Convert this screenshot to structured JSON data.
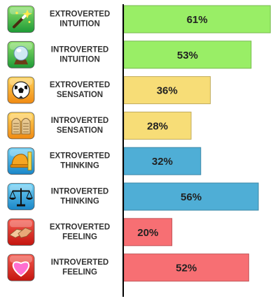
{
  "chart_data": {
    "type": "bar",
    "orientation": "horizontal",
    "xlim": [
      0,
      64
    ],
    "grid": false,
    "categories": [
      {
        "line1": "EXTROVERTED",
        "line2": "INTUITION",
        "icon": "magic-wand-icon",
        "color": "#99EE66"
      },
      {
        "line1": "INTROVERTED",
        "line2": "INTUITION",
        "icon": "crystal-ball-icon",
        "color": "#99EE66"
      },
      {
        "line1": "EXTROVERTED",
        "line2": "SENSATION",
        "icon": "soccer-ball-icon",
        "color": "#F7DD77"
      },
      {
        "line1": "INTROVERTED",
        "line2": "SENSATION",
        "icon": "stone-tablets-icon",
        "color": "#F7DD77"
      },
      {
        "line1": "EXTROVERTED",
        "line2": "THINKING",
        "icon": "hard-hat-ruler-icon",
        "color": "#4FAED6"
      },
      {
        "line1": "INTROVERTED",
        "line2": "THINKING",
        "icon": "balance-scale-icon",
        "color": "#4FAED6"
      },
      {
        "line1": "EXTROVERTED",
        "line2": "FEELING",
        "icon": "handshake-icon",
        "color": "#F76F73"
      },
      {
        "line1": "INTROVERTED",
        "line2": "FEELING",
        "icon": "heart-icon",
        "color": "#F76F73"
      }
    ],
    "values": [
      61,
      53,
      36,
      28,
      32,
      56,
      20,
      52
    ],
    "value_labels": [
      "61%",
      "53%",
      "36%",
      "28%",
      "32%",
      "56%",
      "20%",
      "52%"
    ]
  }
}
